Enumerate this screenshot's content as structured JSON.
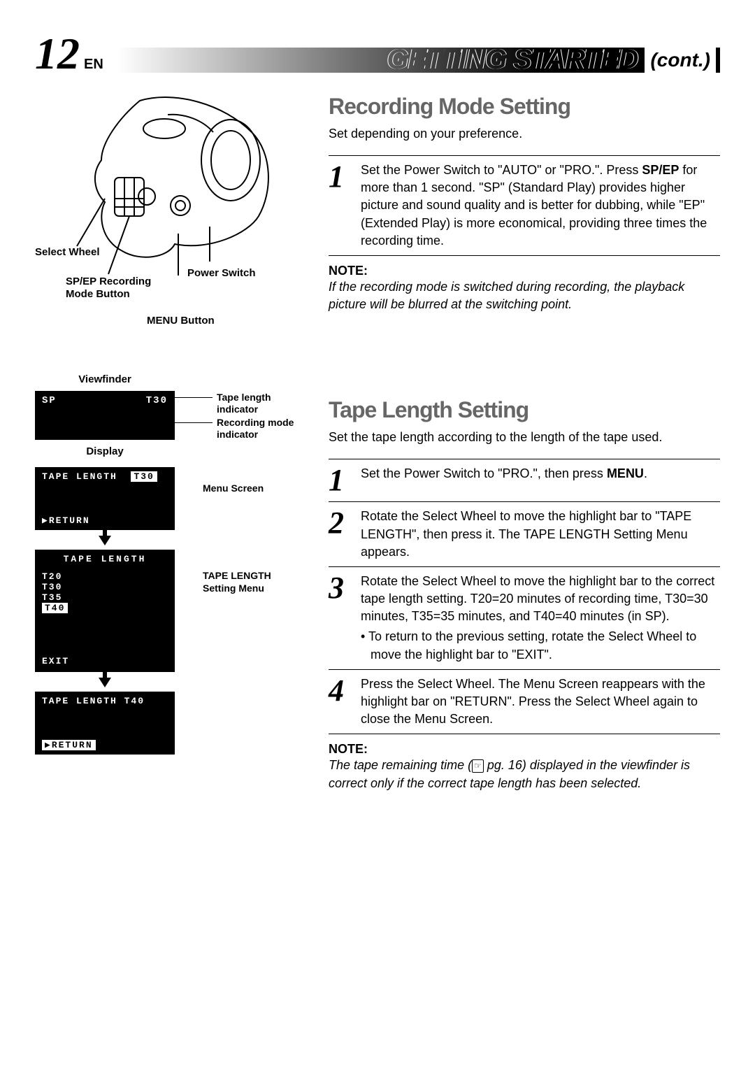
{
  "header": {
    "page_number": "12",
    "lang": "EN",
    "title": "GETTING STARTED",
    "cont": "(cont.)",
    "page_num_fontsize": 64,
    "lang_fontsize": 20,
    "title_fontsize": 40,
    "cont_fontsize": 28
  },
  "diagram": {
    "labels": {
      "select_wheel": "Select Wheel",
      "spep_button": "SP/EP Recording Mode Button",
      "power_switch": "Power Switch",
      "menu_button": "MENU Button"
    }
  },
  "viewfinder": {
    "title": "Viewfinder",
    "display_label": "Display",
    "sp_text": "SP",
    "t30_text": "T30",
    "tape_indicator_label": "Tape length indicator",
    "rec_mode_label": "Recording mode indicator",
    "menu1_line1": "TAPE LENGTH",
    "menu1_highlight": "T30",
    "menu1_return": "▶RETURN",
    "menu1_side": "Menu Screen",
    "menu2_title": "TAPE LENGTH",
    "menu2_opts": [
      "T20",
      "T30",
      "T35"
    ],
    "menu2_highlight": "T40",
    "menu2_exit": "EXIT",
    "menu2_side": "TAPE LENGTH Setting Menu",
    "menu3_line1": "TAPE LENGTH  T40",
    "menu3_return": "▶RETURN",
    "arrow": "▼"
  },
  "recording": {
    "title": "Recording Mode Setting",
    "title_fontsize": 32,
    "intro": "Set depending on your preference.",
    "step_num_fontsize": 44,
    "steps": [
      {
        "num": "1",
        "html": "Set the Power Switch to \"AUTO\" or \"PRO.\". Press <b>SP/EP</b> for more than 1 second. \"SP\" (Standard Play) provides higher picture and sound quality and is better for dubbing, while \"EP\" (Extended Play) is more economical, providing three times the recording time."
      }
    ],
    "note_title": "NOTE:",
    "note_body": "If the recording mode is switched during recording, the playback picture will be blurred at the switching point."
  },
  "tape": {
    "title": "Tape Length Setting",
    "title_fontsize": 32,
    "intro": "Set the tape length according to the length of the tape used.",
    "step_num_fontsize": 44,
    "steps": [
      {
        "num": "1",
        "html": "Set the Power Switch to \"PRO.\", then press <b>MENU</b>."
      },
      {
        "num": "2",
        "html": "Rotate the Select Wheel to move the highlight bar to \"TAPE LENGTH\", then press it. The TAPE LENGTH Setting Menu appears."
      },
      {
        "num": "3",
        "html": "Rotate the Select Wheel to move the highlight bar to the correct tape length setting. T20=20 minutes of recording time, T30=30 minutes, T35=35 minutes, and T40=40 minutes (in SP).",
        "bullet": "• To return to the previous setting, rotate the Select Wheel to move the highlight bar to \"EXIT\"."
      },
      {
        "num": "4",
        "html": "Press the Select Wheel. The Menu Screen reappears with the highlight bar on \"RETURN\". Press the Select Wheel again to close the Menu Screen."
      }
    ],
    "note_title": "NOTE:",
    "note_body_pre": "The tape remaining time (",
    "note_ref": "☞",
    "note_body_mid": " pg. 16) displayed in the viewfinder is correct only if the correct tape length has been selected."
  },
  "colors": {
    "title_gray": "#666666",
    "black": "#000000",
    "white": "#ffffff"
  }
}
